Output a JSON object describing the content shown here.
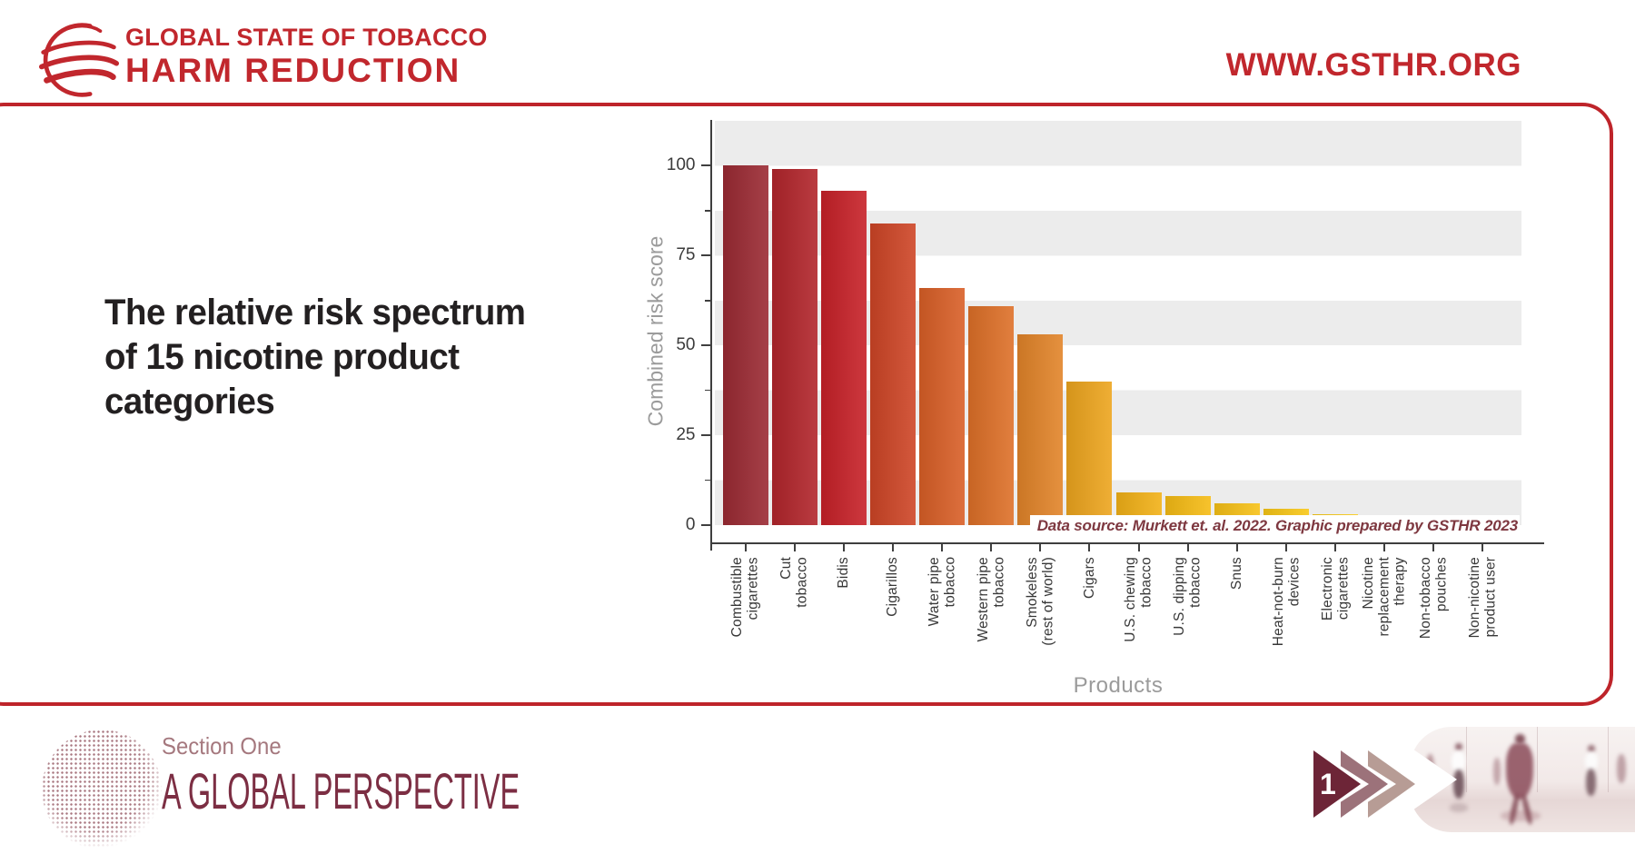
{
  "header": {
    "brand_line1": "GLOBAL STATE OF TOBACCO",
    "brand_line2": "HARM REDUCTION",
    "website": "WWW.GSTHR.ORG"
  },
  "main": {
    "title": "The relative risk spectrum\nof 15 nicotine product\ncategories"
  },
  "chart_data": {
    "type": "bar",
    "title": "The relative risk spectrum of 15 nicotine product categories",
    "xlabel": "Products",
    "ylabel": "Combined risk score",
    "ylim": [
      0,
      113
    ],
    "yticks": [
      0,
      25,
      50,
      75,
      100
    ],
    "grid": "horizontal gray stripes every 12.5 units",
    "legend": "none",
    "categories": [
      "Combustible\ncigarettes",
      "Cut\ntobacco",
      "Bidis",
      "Cigarillos",
      "Water pipe\ntobacco",
      "Western pipe\ntobacco",
      "Smokeless\n(rest of world)",
      "Cigars",
      "U.S. chewing\ntobacco",
      "U.S. dipping\ntobacco",
      "Snus",
      "Heat-not-burn\ndevices",
      "Electronic\ncigarettes",
      "Nicotine\nreplacement\ntherapy",
      "Non-tobacco\npouches",
      "Non-nicotine\nproduct user"
    ],
    "values": [
      100,
      99,
      93,
      84,
      66,
      61,
      53,
      40,
      9,
      8,
      6,
      4.5,
      3,
      1,
      0.5,
      0.2
    ],
    "bar_colors": [
      "#9B2A33",
      "#B2252B",
      "#C72128",
      "#CE4526",
      "#D95F27",
      "#DE7028",
      "#E28429",
      "#EDA51E",
      "#F2B117",
      "#F6BC15",
      "#F7C117",
      "#F8C717",
      "#F9CB1A",
      "#FACF2E",
      "#FBD95E",
      "#FCE89E"
    ],
    "source_note": "Data source: Murkett et. al. 2022. Graphic prepared by GSTHR 2023"
  },
  "footer": {
    "section_label": "Section One",
    "section_title": "A GLOBAL PERSPECTIVE",
    "page_number": "1"
  },
  "colors": {
    "brand_red": "#C1272D",
    "frame_red": "#BE242A",
    "title_text": "#232021",
    "axis_text": "#3B3B3B",
    "muted_text": "#9B9B9B",
    "stripe_gray": "#ECECEC",
    "source_text": "#7E3840",
    "footer_label": "#A5787E",
    "footer_title": "#7C2E43",
    "arrow_dark": "#6D2537",
    "arrow_mid": "#9C727A",
    "arrow_light": "#B79C95"
  }
}
